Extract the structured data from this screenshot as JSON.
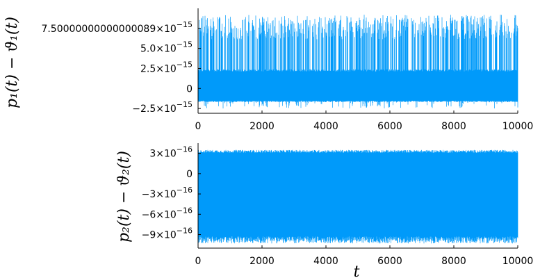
{
  "chart_data": [
    {
      "type": "line",
      "ylabel": "p₁(t) − ϑ₁(t)",
      "xlabel": "",
      "xlim": [
        0,
        10000
      ],
      "ylim": [
        -3.1e-15,
        1e-14
      ],
      "x_ticks": [
        {
          "value": 0,
          "label": "0"
        },
        {
          "value": 2000,
          "label": "2000"
        },
        {
          "value": 4000,
          "label": "4000"
        },
        {
          "value": 6000,
          "label": "6000"
        },
        {
          "value": 8000,
          "label": "8000"
        },
        {
          "value": 10000,
          "label": "10000"
        }
      ],
      "y_ticks": [
        {
          "value": -2.5e-15,
          "label": "−2.5×10",
          "exp": "−15"
        },
        {
          "value": 0,
          "label": "0",
          "exp": ""
        },
        {
          "value": 2.5e-15,
          "label": "2.5×10",
          "exp": "−15"
        },
        {
          "value": 5e-15,
          "label": "5.0×10",
          "exp": "−15"
        },
        {
          "value": 7.500000000000001e-15,
          "label": "7.50000000000000089×10",
          "exp": "−15"
        }
      ],
      "grid": false,
      "legend": "none",
      "color": "#009AFA",
      "envelope": {
        "band_low": -1.7e-15,
        "band_high": 2.4e-15,
        "spike_high": 9.2e-15,
        "spike_low": -2.5e-15
      }
    },
    {
      "type": "line",
      "ylabel": "p₂(t) − ϑ₂(t)",
      "xlabel": "t",
      "xlim": [
        0,
        10000
      ],
      "ylim": [
        -1.1e-15,
        4.5e-16
      ],
      "x_ticks": [
        {
          "value": 0,
          "label": "0"
        },
        {
          "value": 2000,
          "label": "2000"
        },
        {
          "value": 4000,
          "label": "4000"
        },
        {
          "value": 6000,
          "label": "6000"
        },
        {
          "value": 8000,
          "label": "8000"
        },
        {
          "value": 10000,
          "label": "10000"
        }
      ],
      "y_ticks": [
        {
          "value": -9e-16,
          "label": "−9×10",
          "exp": "−16"
        },
        {
          "value": -6e-16,
          "label": "−6×10",
          "exp": "−16"
        },
        {
          "value": -3e-16,
          "label": "−3×10",
          "exp": "−16"
        },
        {
          "value": 0,
          "label": "0",
          "exp": ""
        },
        {
          "value": 3e-16,
          "label": "3×10",
          "exp": "−16"
        }
      ],
      "grid": false,
      "legend": "none",
      "color": "#009AFA",
      "envelope": {
        "band_low": -1.03e-15,
        "band_high": 3.5e-16
      }
    }
  ]
}
